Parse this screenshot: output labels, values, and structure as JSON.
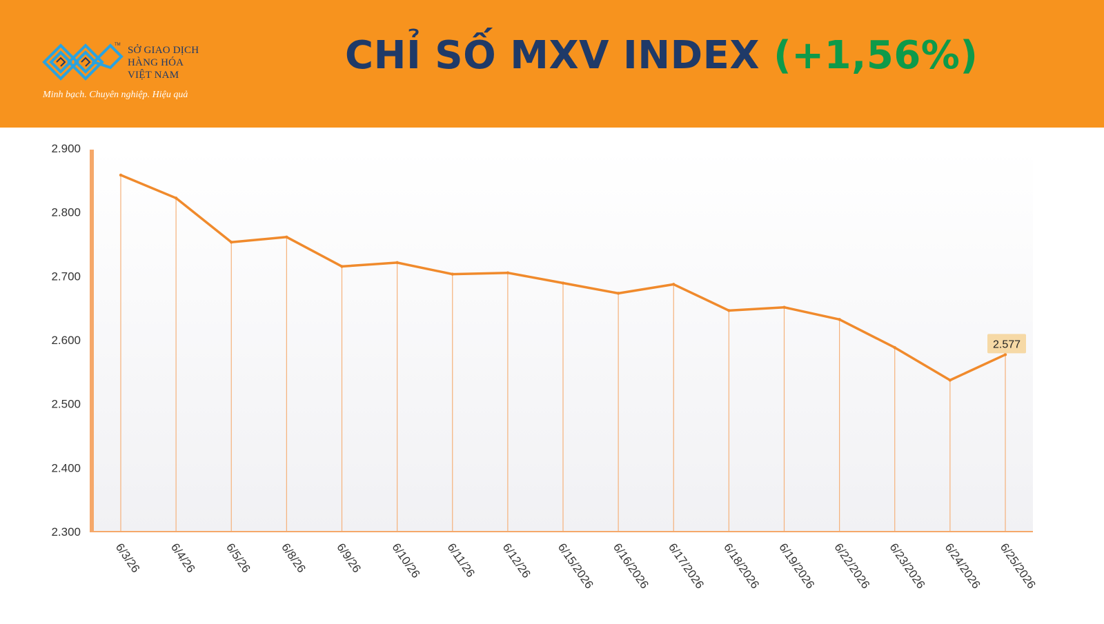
{
  "header": {
    "logo": {
      "lines": [
        "SỞ GIAO DỊCH",
        "HÀNG HÓA",
        "VIỆT NAM"
      ],
      "tagline": "Minh bạch. Chuyên nghiệp. Hiệu quả",
      "tm": "TM"
    },
    "title_main": "CHỈ SỐ MXV INDEX",
    "title_change": "(+1,56%)"
  },
  "colors": {
    "header_bg": "#f7931e",
    "title": "#1f3a68",
    "change_positive": "#0e9a4a",
    "line": "#f08a2c",
    "drop_line": "#f5b17a",
    "label_bg": "#f6d9a6"
  },
  "chart_data": {
    "type": "line",
    "categories": [
      "6/3/26",
      "6/4/26",
      "6/5/26",
      "6/8/26",
      "6/9/26",
      "6/10/26",
      "6/11/26",
      "6/12/26",
      "6/15/2026",
      "6/16/2026",
      "6/17/2026",
      "6/18/2026",
      "6/19/2026",
      "6/22/2026",
      "6/23/2026",
      "6/24/2026",
      "6/25/2026"
    ],
    "values": [
      2858,
      2822,
      2753,
      2761,
      2715,
      2721,
      2703,
      2705,
      2689,
      2673,
      2687,
      2646,
      2651,
      2632,
      2588,
      2537,
      2577
    ],
    "ylim": [
      2300,
      2900
    ],
    "yticks": [
      "2.300",
      "2.400",
      "2.500",
      "2.600",
      "2.700",
      "2.800",
      "2.900"
    ],
    "ytick_values": [
      2300,
      2400,
      2500,
      2600,
      2700,
      2800,
      2900
    ],
    "last_label": "2.577",
    "grid": false,
    "drop_lines": true
  }
}
